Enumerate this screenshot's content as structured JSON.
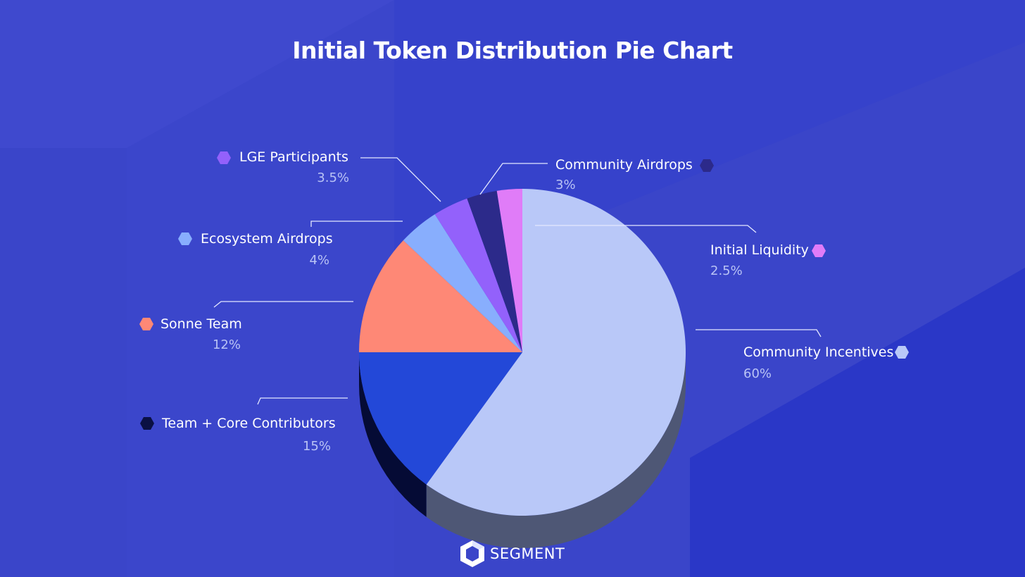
{
  "title": "Initial Token Distribution Pie Chart",
  "brand": {
    "name": "SEGMENT",
    "icon": "segment-logo-icon"
  },
  "chart_data": {
    "type": "pie",
    "title": "Initial Token Distribution Pie Chart",
    "style": "3d-exploded",
    "legend_placement": "labels-around-pie",
    "slices": [
      {
        "name": "Community Incentives",
        "pct_label": "60%",
        "value": 60,
        "color": "#b9c8f8",
        "side": "#4e5775"
      },
      {
        "name": "Team + Core Contributors",
        "pct_label": "15%",
        "value": 15,
        "color": "#2348d8",
        "side": "#050b35",
        "legend_color": "#0a1044"
      },
      {
        "name": "Sonne Team",
        "pct_label": "12%",
        "value": 12,
        "color": "#fe8876",
        "side": "#5c1c10"
      },
      {
        "name": "Ecosystem Airdrops",
        "pct_label": "4%",
        "value": 4,
        "color": "#88aefd",
        "side": "#1c3159"
      },
      {
        "name": "LGE Participants",
        "pct_label": "3.5%",
        "value": 3.5,
        "color": "#9361fb",
        "side": "#3a1f7a"
      },
      {
        "name": "Community Airdrops",
        "pct_label": "3%",
        "value": 3,
        "color": "#2c2a8a",
        "side": "#14124a"
      },
      {
        "name": "Initial Liquidity",
        "pct_label": "2.5%",
        "value": 2.5,
        "color": "#e07cf8",
        "side": "#6e2a80"
      }
    ]
  }
}
